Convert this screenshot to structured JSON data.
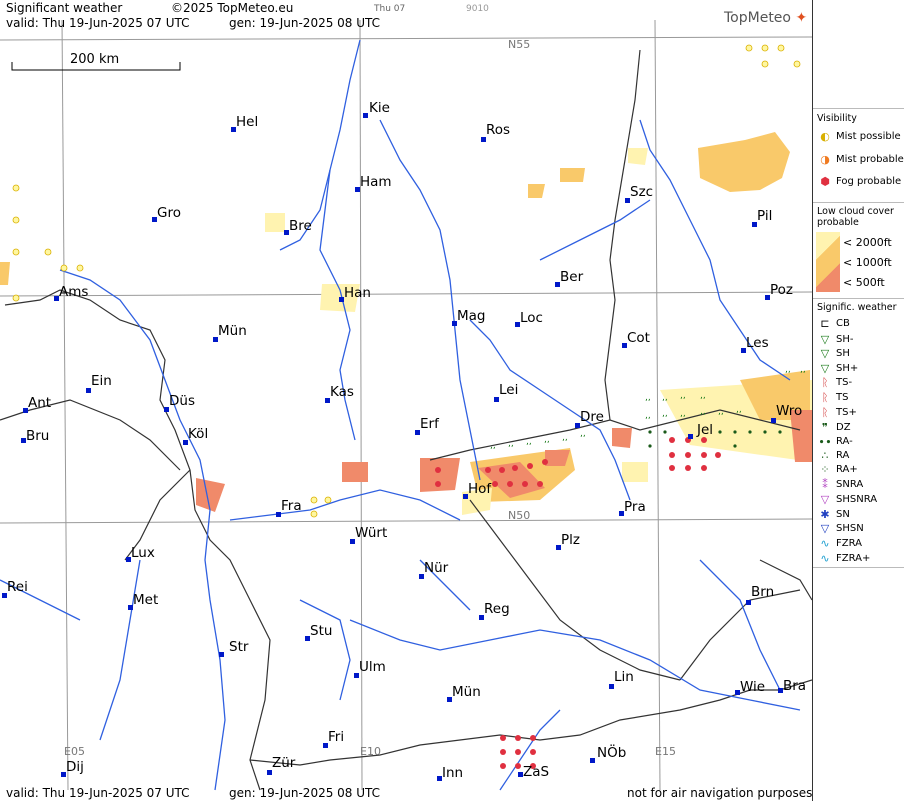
{
  "header": {
    "title": "Significant weather",
    "copyright": "©2025 TopMeteo.eu",
    "slot": "Thu 07",
    "code": "9010",
    "valid": "valid:  Thu  19-Jun-2025  07 UTC",
    "gen": "gen: 19-Jun-2025 08 UTC",
    "logo": "TopMeteo"
  },
  "footer": {
    "valid": "valid:  Thu  19-Jun-2025  07 UTC",
    "gen": "gen: 19-Jun-2025 08 UTC",
    "disclaimer": "not for air navigation purposes"
  },
  "scale": {
    "label": "200 km"
  },
  "grid_labels": [
    "N55",
    "N50",
    "E05",
    "E10",
    "E15"
  ],
  "cities": [
    "Kie",
    "Hel",
    "Ros",
    "Ham",
    "Szc",
    "Gro",
    "Bre",
    "Pil",
    "Ber",
    "Ams",
    "Han",
    "Poz",
    "Mag",
    "Loc",
    "Mün",
    "Cot",
    "Les",
    "Ein",
    "Kas",
    "Lei",
    "Ant",
    "Düs",
    "Dre",
    "Wro",
    "Bru",
    "Köl",
    "Erf",
    "Jel",
    "Hof",
    "Fra",
    "Pra",
    "Würt",
    "Lux",
    "Plz",
    "Rei",
    "Nür",
    "Met",
    "Brn",
    "Reg",
    "Stu",
    "Str",
    "Ulm",
    "Lin",
    "Wie",
    "Bra",
    "Mün",
    "Fri",
    "NÖb",
    "Dij",
    "Zür",
    "Inn",
    "ZaS"
  ],
  "legend": {
    "visibility_title": "Visibility",
    "visibility": [
      "Mist possible",
      "Mist probable",
      "Fog probable"
    ],
    "lowcloud_title": "Low cloud cover probable",
    "lowcloud": [
      "< 2000ft",
      "< 1000ft",
      "<   500ft"
    ],
    "sigwx_title": "Signific. weather",
    "sigwx": [
      "CB",
      "SH-",
      "SH",
      "SH+",
      "TS-",
      "TS",
      "TS+",
      "DZ",
      "RA-",
      "RA",
      "RA+",
      "SNRA",
      "SHSNRA",
      "SN",
      "SHSN",
      "FZRA",
      "FZRA+"
    ]
  },
  "colors": {
    "cloud_2000": "#fff3b0",
    "cloud_1000": "#f9c96a",
    "cloud_500": "#f08a6a",
    "rivers": "#3060e0",
    "borders": "#333333",
    "grid": "#999999",
    "city_dot": "#0018c8",
    "fog": "#e03040"
  }
}
